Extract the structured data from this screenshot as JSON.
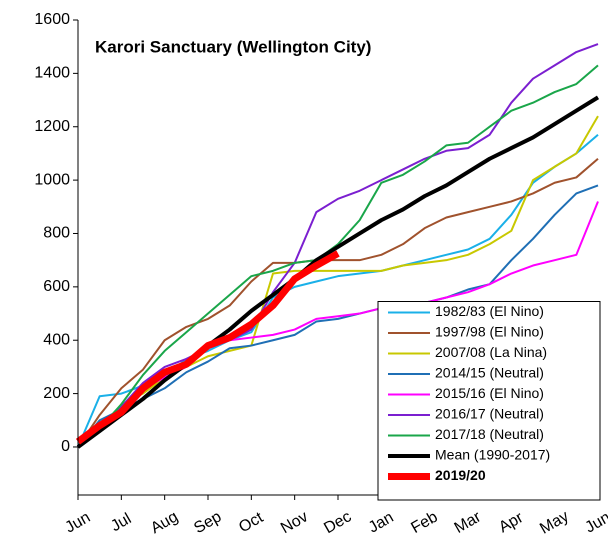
{
  "chart_data": {
    "type": "line",
    "title": "Karori Sanctuary (Wellington City)",
    "x": [
      0,
      0.5,
      1,
      1.5,
      2,
      2.5,
      3,
      3.5,
      4,
      4.5,
      5,
      5.5,
      6,
      6.5,
      7,
      7.5,
      8,
      8.5,
      9,
      9.5,
      10,
      10.5,
      11,
      11.5,
      12
    ],
    "xlim": [
      0,
      12
    ],
    "xticks": [
      {
        "value": 0,
        "label": "Jun"
      },
      {
        "value": 1,
        "label": "Jul"
      },
      {
        "value": 2,
        "label": "Aug"
      },
      {
        "value": 3,
        "label": "Sep"
      },
      {
        "value": 4,
        "label": "Oct"
      },
      {
        "value": 5,
        "label": "Nov"
      },
      {
        "value": 6,
        "label": "Dec"
      },
      {
        "value": 7,
        "label": "Jan"
      },
      {
        "value": 8,
        "label": "Feb"
      },
      {
        "value": 9,
        "label": "Mar"
      },
      {
        "value": 10,
        "label": "Apr"
      },
      {
        "value": 11,
        "label": "May"
      },
      {
        "value": 12,
        "label": "Jun"
      }
    ],
    "ylim": [
      -180,
      1600
    ],
    "yticks": [
      0,
      200,
      400,
      600,
      800,
      1000,
      1200,
      1400,
      1600
    ],
    "grid": false,
    "legend": "lower right",
    "series": [
      {
        "name": "1982/83 (El Nino)",
        "color": "#1ab0e8",
        "width": 2,
        "values": [
          0,
          190,
          200,
          230,
          260,
          330,
          360,
          400,
          430,
          560,
          600,
          620,
          640,
          650,
          660,
          680,
          700,
          720,
          740,
          780,
          870,
          990,
          1050,
          1100,
          1170
        ]
      },
      {
        "name": "1997/98 (El Nino)",
        "color": "#a0522d",
        "width": 2,
        "values": [
          0,
          120,
          220,
          290,
          400,
          450,
          480,
          530,
          620,
          690,
          690,
          700,
          700,
          700,
          720,
          760,
          820,
          860,
          880,
          900,
          920,
          950,
          990,
          1010,
          1080
        ]
      },
      {
        "name": "2007/08 (La Nina)",
        "color": "#c8c800",
        "width": 2,
        "values": [
          0,
          60,
          160,
          200,
          260,
          300,
          340,
          360,
          380,
          650,
          660,
          660,
          660,
          660,
          660,
          680,
          690,
          700,
          720,
          760,
          810,
          1000,
          1050,
          1100,
          1240
        ]
      },
      {
        "name": "2014/15 (Neutral)",
        "color": "#1f6fb5",
        "width": 2,
        "values": [
          0,
          100,
          140,
          180,
          220,
          280,
          320,
          370,
          380,
          400,
          420,
          470,
          480,
          500,
          520,
          530,
          540,
          560,
          590,
          610,
          700,
          780,
          870,
          950,
          980
        ]
      },
      {
        "name": "2015/16 (El Nino)",
        "color": "#ff00ff",
        "width": 2,
        "values": [
          0,
          80,
          150,
          220,
          260,
          300,
          370,
          400,
          410,
          420,
          440,
          480,
          490,
          500,
          520,
          530,
          540,
          560,
          580,
          610,
          650,
          680,
          700,
          720,
          920
        ]
      },
      {
        "name": "2016/17 (Neutral)",
        "color": "#7b1fd0",
        "width": 2,
        "values": [
          0,
          70,
          150,
          240,
          300,
          330,
          370,
          400,
          440,
          580,
          690,
          880,
          930,
          960,
          1000,
          1040,
          1080,
          1110,
          1120,
          1170,
          1290,
          1380,
          1430,
          1480,
          1510
        ]
      },
      {
        "name": "2017/18 (Neutral)",
        "color": "#1aa64a",
        "width": 2,
        "values": [
          0,
          70,
          160,
          270,
          360,
          430,
          500,
          570,
          640,
          660,
          690,
          700,
          760,
          850,
          990,
          1020,
          1070,
          1130,
          1140,
          1200,
          1260,
          1290,
          1330,
          1360,
          1430
        ]
      },
      {
        "name": "Mean (1990-2017)",
        "color": "#000000",
        "width": 4,
        "values": [
          0,
          60,
          120,
          180,
          250,
          310,
          380,
          440,
          510,
          570,
          630,
          700,
          750,
          800,
          850,
          890,
          940,
          980,
          1030,
          1080,
          1120,
          1160,
          1210,
          1260,
          1310
        ]
      },
      {
        "name": "2019/20",
        "color": "#ff0000",
        "width": 7,
        "emphasis": true,
        "values": [
          20,
          80,
          130,
          220,
          280,
          310,
          380,
          410,
          460,
          530,
          630,
          680,
          725,
          null,
          null,
          null,
          null,
          null,
          null,
          null,
          null,
          null,
          null,
          null,
          null
        ]
      }
    ]
  }
}
